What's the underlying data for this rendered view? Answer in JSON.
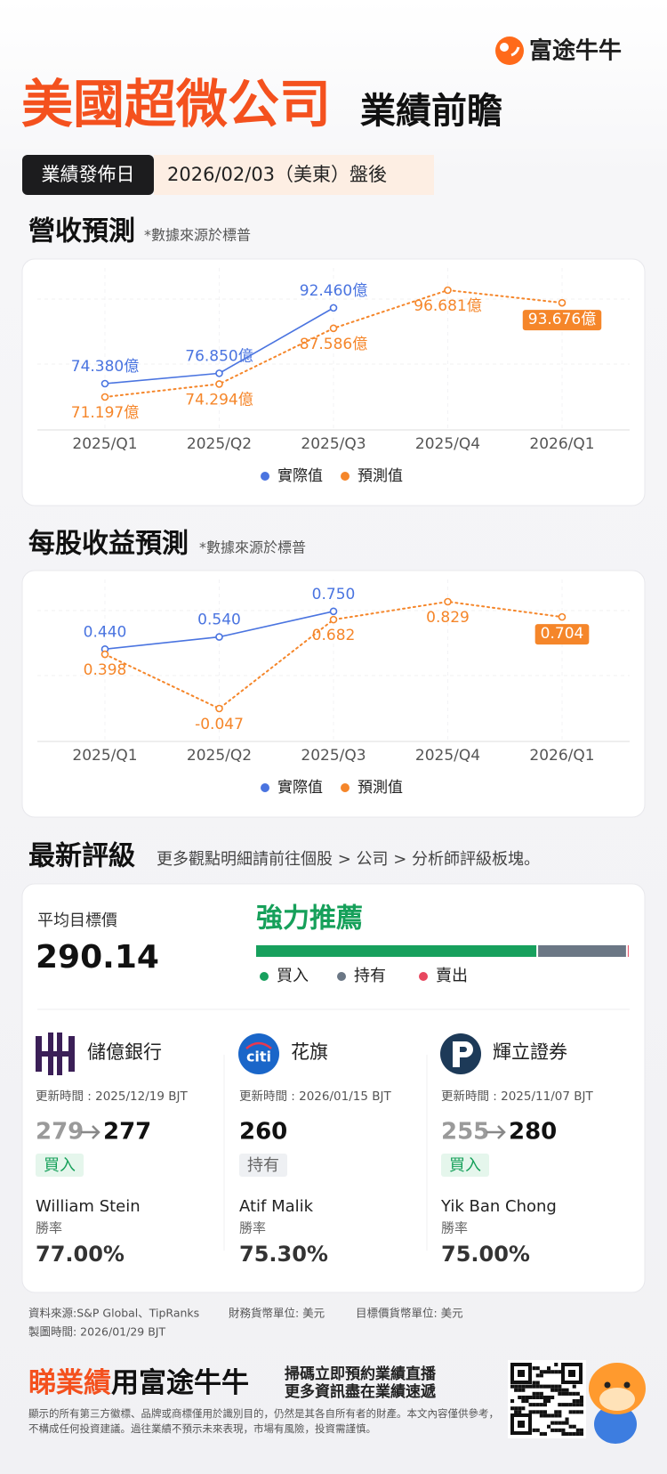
{
  "header": {
    "brand": "富途牛牛",
    "title": "美國超微公司",
    "subtitle": "業績前瞻",
    "date_label": "業績發佈日",
    "date": "2026/02/03（美東）盤後"
  },
  "chart_data": [
    {
      "type": "line",
      "title": "營收預測",
      "subtitle": "*數據來源於標普",
      "categories": [
        "2025/Q1",
        "2025/Q2",
        "2025/Q3",
        "2025/Q4",
        "2026/Q1"
      ],
      "series": [
        {
          "name": "實際值",
          "color": "#4a74e0",
          "line_style": "solid",
          "values": [
            74.38,
            76.85,
            92.46,
            null,
            null
          ],
          "value_labels": [
            "74.380億",
            "76.850億",
            "92.460億",
            null,
            null
          ]
        },
        {
          "name": "預測值",
          "color": "#f5862a",
          "line_style": "dotted",
          "values": [
            71.197,
            74.294,
            87.586,
            96.681,
            93.676
          ],
          "value_labels": [
            "71.197億",
            "74.294億",
            "87.586億",
            "96.681億",
            "93.676億"
          ]
        }
      ]
    },
    {
      "type": "line",
      "title": "每股收益預測",
      "subtitle": "*數據來源於標普",
      "categories": [
        "2025/Q1",
        "2025/Q2",
        "2025/Q3",
        "2025/Q4",
        "2026/Q1"
      ],
      "series": [
        {
          "name": "實際值",
          "color": "#4a74e0",
          "line_style": "solid",
          "values": [
            0.44,
            0.54,
            0.75,
            null,
            null
          ],
          "value_labels": [
            "0.440",
            "0.540",
            "0.750",
            null,
            null
          ]
        },
        {
          "name": "預測值",
          "color": "#f5862a",
          "line_style": "dotted",
          "values": [
            0.398,
            -0.047,
            0.682,
            0.829,
            0.704
          ],
          "value_labels": [
            "0.398",
            "-0.047",
            "0.682",
            "0.829",
            "0.704"
          ]
        }
      ]
    }
  ],
  "ratings": {
    "title": "最新評級",
    "note": "更多觀點明細請前往個股 > 公司 > 分析師評級板塊。",
    "avg_target_label": "平均目標價",
    "avg_target": "290.14",
    "consensus": "強力推薦",
    "distribution": [
      {
        "name": "買入",
        "color": "#17a05d",
        "value": 75.5
      },
      {
        "name": "持有",
        "color": "#6b7785",
        "value": 24
      },
      {
        "name": "賣出",
        "color": "#e8475f",
        "value": 0.5
      }
    ],
    "analysts": [
      {
        "firm": "儲億銀行",
        "updated": "更新時間 : 2025/12/19 BJT",
        "old_target": 279,
        "target": 277,
        "rating": "買入",
        "analyst": "William Stein",
        "win_rate_label": "勝率",
        "win_rate": "77.00%"
      },
      {
        "firm": "花旗",
        "logo_text": "citi",
        "updated": "更新時間 : 2026/01/15 BJT",
        "target": 260,
        "rating": "持有",
        "analyst": "Atif Malik",
        "win_rate_label": "勝率",
        "win_rate": "75.30%"
      },
      {
        "firm": "輝立證券",
        "updated": "更新時間 : 2025/11/07 BJT",
        "old_target": 255,
        "target": 280,
        "rating": "買入",
        "analyst": "Yik Ban Chong",
        "win_rate_label": "勝率",
        "win_rate": "75.00%"
      }
    ]
  },
  "footer": {
    "source": "資料來源:S&P Global、TipRanks",
    "currency": "財務貨幣單位: 美元",
    "target_currency": "目標價貨幣單位: 美元",
    "made_at": "製圖時間: 2026/01/29 BJT",
    "promo_highlight": "睇業績",
    "promo_rest": "用富途牛牛",
    "scan_line1": "掃碼立即預約業績直播",
    "scan_line2": "更多資訊盡在業績速遞",
    "disclaimer": "顯示的所有第三方徽標、品牌或商標僅用於識別目的，仍然是其各自所有者的財產。本文內容僅供參考，不構成任何投資建議。過往業績不預示未來表現，市場有風險，投資需謹慎。"
  }
}
